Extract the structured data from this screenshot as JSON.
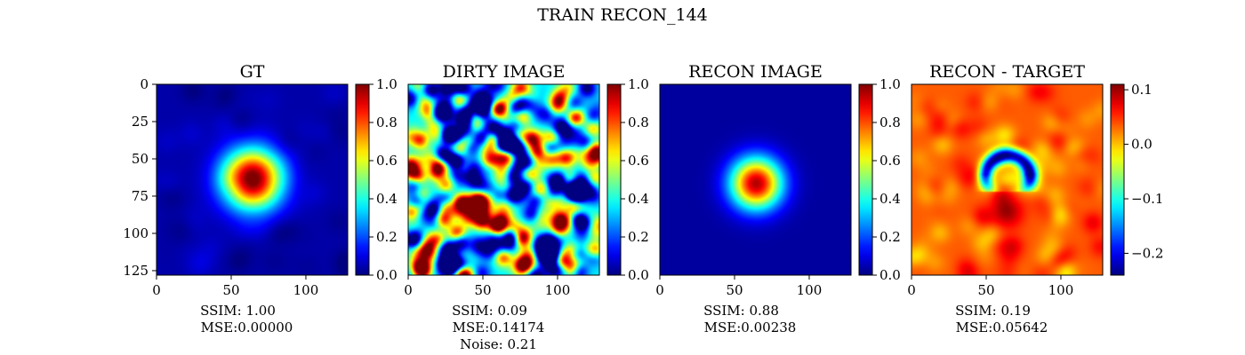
{
  "figure": {
    "suptitle": "TRAIN RECON_144"
  },
  "chart_data": [
    {
      "type": "heatmap",
      "title": "GT",
      "image": {
        "kind": "blob",
        "cx": 64,
        "cy": 63,
        "sigma": 14,
        "amp": 1.0,
        "base": 0.04,
        "noise": 0.04
      },
      "x_ticks": [
        0,
        50,
        100
      ],
      "y_ticks": [
        0,
        25,
        50,
        75,
        100,
        125
      ],
      "extent": [
        0,
        128
      ],
      "colorbar": {
        "min": 0.0,
        "max": 1.0,
        "ticks": [
          "0.0",
          "0.2",
          "0.4",
          "0.6",
          "0.8",
          "1.0"
        ],
        "tick_values": [
          0,
          0.2,
          0.4,
          0.6,
          0.8,
          1.0
        ]
      },
      "metrics": [
        "SSIM: 1.00",
        "MSE:0.00000"
      ]
    },
    {
      "type": "heatmap",
      "title": "DIRTY IMAGE",
      "image": {
        "kind": "dirty"
      },
      "x_ticks": [
        0,
        50,
        100
      ],
      "extent": [
        0,
        128
      ],
      "colorbar": {
        "min": 0.0,
        "max": 1.0,
        "ticks": [
          "0.0",
          "0.2",
          "0.4",
          "0.6",
          "0.8",
          "1.0"
        ],
        "tick_values": [
          0,
          0.2,
          0.4,
          0.6,
          0.8,
          1.0
        ]
      },
      "metrics": [
        "SSIM: 0.09",
        "MSE:0.14174",
        "Noise: 0.21"
      ]
    },
    {
      "type": "heatmap",
      "title": "RECON IMAGE",
      "image": {
        "kind": "blob",
        "cx": 64,
        "cy": 66,
        "sigma": 12,
        "amp": 0.92,
        "base": 0.03,
        "noise": 0.0
      },
      "x_ticks": [
        0,
        50,
        100
      ],
      "extent": [
        0,
        128
      ],
      "colorbar": {
        "min": 0.0,
        "max": 1.0,
        "ticks": [
          "0.0",
          "0.2",
          "0.4",
          "0.6",
          "0.8",
          "1.0"
        ],
        "tick_values": [
          0,
          0.2,
          0.4,
          0.6,
          0.8,
          1.0
        ]
      },
      "metrics": [
        "SSIM: 0.88",
        "MSE:0.00238"
      ]
    },
    {
      "type": "heatmap",
      "title": "RECON - TARGET",
      "image": {
        "kind": "diff"
      },
      "x_ticks": [
        0,
        50,
        100
      ],
      "extent": [
        0,
        128
      ],
      "colorbar": {
        "min": -0.24,
        "max": 0.11,
        "ticks": [
          "−0.2",
          "−0.1",
          "0.0",
          "0.1"
        ],
        "tick_values": [
          -0.2,
          -0.1,
          0.0,
          0.1
        ]
      },
      "metrics": [
        "SSIM: 0.19",
        "MSE:0.05642"
      ]
    }
  ]
}
